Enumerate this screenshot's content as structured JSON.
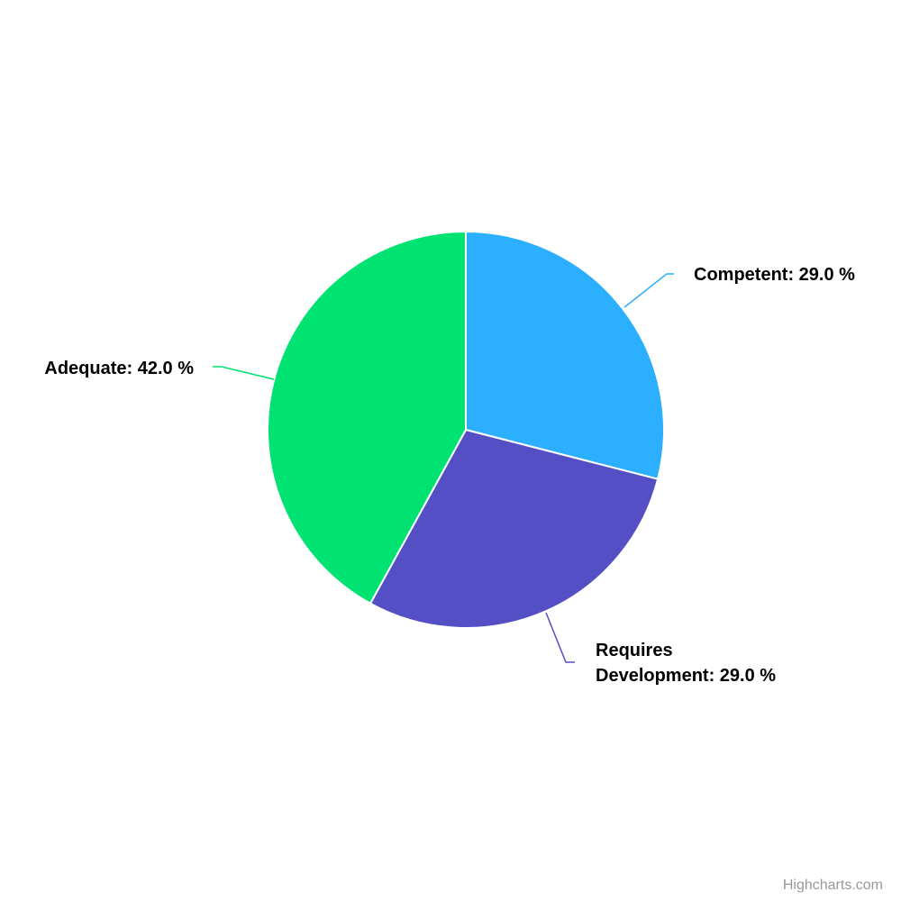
{
  "chart_data": {
    "type": "pie",
    "title": "",
    "slices": [
      {
        "name": "Competent",
        "value": 29.0,
        "label": "Competent: 29.0 %",
        "color": "#2caffe"
      },
      {
        "name": "Requires Development",
        "value": 29.0,
        "label_lines": [
          "Requires",
          "Development: 29.0 %"
        ],
        "color": "#544fc5"
      },
      {
        "name": "Adequate",
        "value": 42.0,
        "label": "Adequate: 42.0 %",
        "color": "#00e272"
      }
    ],
    "start_angle_deg": 0,
    "direction": "clockwise"
  },
  "credits": "Highcharts.com"
}
